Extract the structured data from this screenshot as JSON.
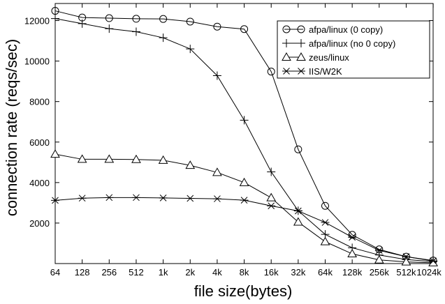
{
  "chart_data": {
    "type": "line",
    "title": "",
    "xlabel": "file size(bytes)",
    "ylabel": "connection rate (reqs/sec)",
    "categories": [
      "64",
      "128",
      "256",
      "512",
      "1k",
      "2k",
      "4k",
      "8k",
      "16k",
      "32k",
      "64k",
      "128k",
      "256k",
      "512k",
      "1024k"
    ],
    "ylim": [
      0,
      13000
    ],
    "yticks": [
      2000,
      4000,
      6000,
      8000,
      10000,
      12000
    ],
    "grid": false,
    "legend_position": "top-right",
    "series": [
      {
        "name": "afpa/linux (0 copy)",
        "marker": "circle",
        "values": [
          12480,
          12150,
          12120,
          12090,
          12080,
          11950,
          11700,
          11580,
          9480,
          5640,
          2850,
          1420,
          700,
          340,
          150
        ]
      },
      {
        "name": "afpa/linux (no 0 copy)",
        "marker": "plus",
        "values": [
          12100,
          11850,
          11600,
          11450,
          11150,
          10600,
          9280,
          7080,
          4530,
          2610,
          1440,
          780,
          420,
          200,
          100
        ]
      },
      {
        "name": "zeus/linux",
        "marker": "triangle",
        "values": [
          5400,
          5150,
          5150,
          5140,
          5100,
          4850,
          4500,
          4000,
          3250,
          2050,
          1080,
          480,
          180,
          80,
          40
        ]
      },
      {
        "name": "IIS/W2K",
        "marker": "asterisk",
        "values": [
          3120,
          3230,
          3260,
          3260,
          3240,
          3220,
          3200,
          3130,
          2850,
          2600,
          2030,
          1300,
          650,
          340,
          130
        ]
      }
    ]
  }
}
